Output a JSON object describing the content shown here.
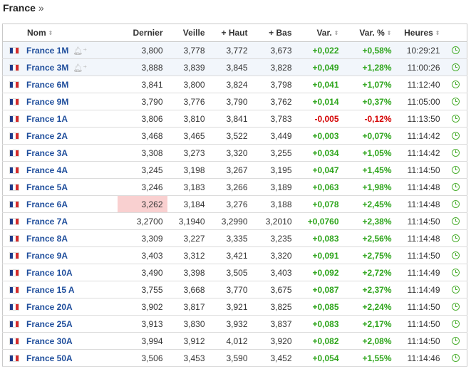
{
  "title": "France",
  "title_suffix": "»",
  "columns": [
    "Nom",
    "Dernier",
    "Veille",
    "+ Haut",
    "+ Bas",
    "Var.",
    "Var. %",
    "Heures"
  ],
  "sort_glyph": "⇕",
  "rows": [
    {
      "name": "France 1M",
      "last": "3,800",
      "prev": "3,778",
      "high": "3,772",
      "low": "3,673",
      "var": "+0,022",
      "varpct": "+0,58%",
      "time": "10:29:21",
      "dir": "up",
      "bell": true,
      "hl": true
    },
    {
      "name": "France 3M",
      "last": "3,888",
      "prev": "3,839",
      "high": "3,845",
      "low": "3,828",
      "var": "+0,049",
      "varpct": "+1,28%",
      "time": "11:00:26",
      "dir": "up",
      "bell": true,
      "hl": true
    },
    {
      "name": "France 6M",
      "last": "3,841",
      "prev": "3,800",
      "high": "3,824",
      "low": "3,798",
      "var": "+0,041",
      "varpct": "+1,07%",
      "time": "11:12:40",
      "dir": "up"
    },
    {
      "name": "France 9M",
      "last": "3,790",
      "prev": "3,776",
      "high": "3,790",
      "low": "3,762",
      "var": "+0,014",
      "varpct": "+0,37%",
      "time": "11:05:00",
      "dir": "up"
    },
    {
      "name": "France 1A",
      "last": "3,806",
      "prev": "3,810",
      "high": "3,841",
      "low": "3,783",
      "var": "-0,005",
      "varpct": "-0,12%",
      "time": "11:13:50",
      "dir": "down"
    },
    {
      "name": "France 2A",
      "last": "3,468",
      "prev": "3,465",
      "high": "3,522",
      "low": "3,449",
      "var": "+0,003",
      "varpct": "+0,07%",
      "time": "11:14:42",
      "dir": "up"
    },
    {
      "name": "France 3A",
      "last": "3,308",
      "prev": "3,273",
      "high": "3,320",
      "low": "3,255",
      "var": "+0,034",
      "varpct": "+1,05%",
      "time": "11:14:42",
      "dir": "up"
    },
    {
      "name": "France 4A",
      "last": "3,245",
      "prev": "3,198",
      "high": "3,267",
      "low": "3,195",
      "var": "+0,047",
      "varpct": "+1,45%",
      "time": "11:14:50",
      "dir": "up"
    },
    {
      "name": "France 5A",
      "last": "3,246",
      "prev": "3,183",
      "high": "3,266",
      "low": "3,189",
      "var": "+0,063",
      "varpct": "+1,98%",
      "time": "11:14:48",
      "dir": "up"
    },
    {
      "name": "France 6A",
      "last": "3,262",
      "prev": "3,184",
      "high": "3,276",
      "low": "3,188",
      "var": "+0,078",
      "varpct": "+2,45%",
      "time": "11:14:48",
      "dir": "up",
      "flash": true
    },
    {
      "name": "France 7A",
      "last": "3,2700",
      "prev": "3,1940",
      "high": "3,2990",
      "low": "3,2010",
      "var": "+0,0760",
      "varpct": "+2,38%",
      "time": "11:14:50",
      "dir": "up"
    },
    {
      "name": "France 8A",
      "last": "3,309",
      "prev": "3,227",
      "high": "3,335",
      "low": "3,235",
      "var": "+0,083",
      "varpct": "+2,56%",
      "time": "11:14:48",
      "dir": "up"
    },
    {
      "name": "France 9A",
      "last": "3,403",
      "prev": "3,312",
      "high": "3,421",
      "low": "3,320",
      "var": "+0,091",
      "varpct": "+2,75%",
      "time": "11:14:50",
      "dir": "up"
    },
    {
      "name": "France 10A",
      "last": "3,490",
      "prev": "3,398",
      "high": "3,505",
      "low": "3,403",
      "var": "+0,092",
      "varpct": "+2,72%",
      "time": "11:14:49",
      "dir": "up"
    },
    {
      "name": "France 15 A",
      "last": "3,755",
      "prev": "3,668",
      "high": "3,770",
      "low": "3,675",
      "var": "+0,087",
      "varpct": "+2,37%",
      "time": "11:14:49",
      "dir": "up"
    },
    {
      "name": "France 20A",
      "last": "3,902",
      "prev": "3,817",
      "high": "3,921",
      "low": "3,825",
      "var": "+0,085",
      "varpct": "+2,24%",
      "time": "11:14:50",
      "dir": "up"
    },
    {
      "name": "France 25A",
      "last": "3,913",
      "prev": "3,830",
      "high": "3,932",
      "low": "3,837",
      "var": "+0,083",
      "varpct": "+2,17%",
      "time": "11:14:50",
      "dir": "up"
    },
    {
      "name": "France 30A",
      "last": "3,994",
      "prev": "3,912",
      "high": "4,012",
      "low": "3,920",
      "var": "+0,082",
      "varpct": "+2,08%",
      "time": "11:14:50",
      "dir": "up"
    },
    {
      "name": "France 50A",
      "last": "3,506",
      "prev": "3,453",
      "high": "3,590",
      "low": "3,452",
      "var": "+0,054",
      "varpct": "+1,55%",
      "time": "11:14:46",
      "dir": "up"
    }
  ],
  "colors": {
    "up": "#2ea51c",
    "down": "#d40000",
    "link": "#1f4e9c",
    "flash": "#f9d0d0",
    "clock": "#4caf30"
  },
  "icons": {
    "flag": "france-flag-icon",
    "bell": "bell-plus-icon",
    "clock": "clock-icon",
    "sort": "sort-arrows-icon"
  }
}
